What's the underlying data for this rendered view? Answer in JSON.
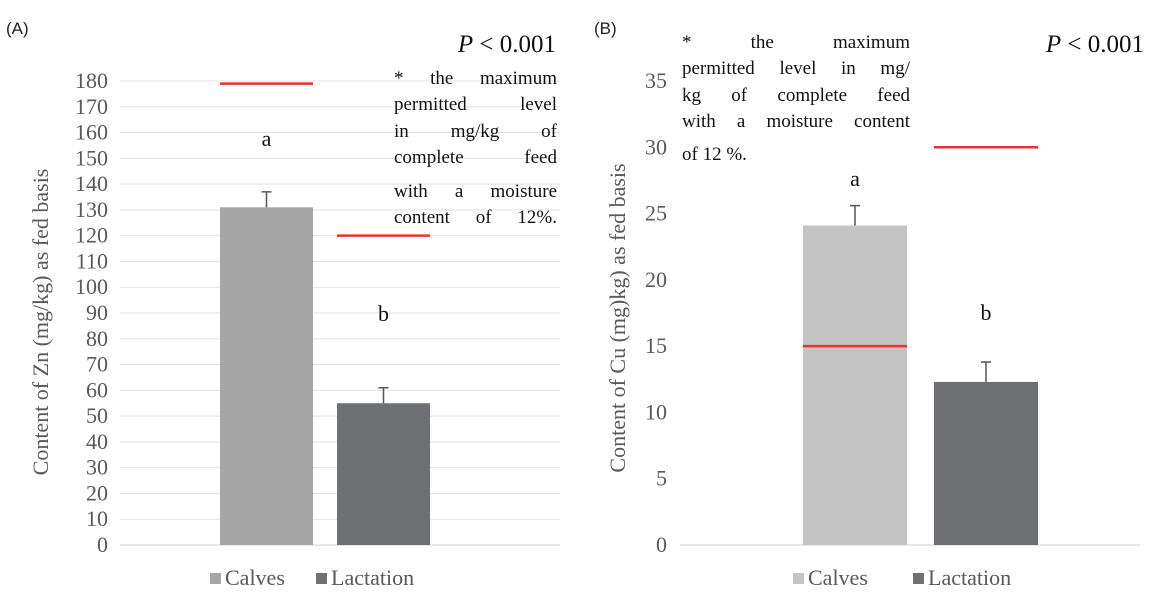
{
  "chart_data": [
    {
      "type": "bar",
      "panel_label": "(A)",
      "p_value_prefix": "P",
      "p_value_rest": " < 0.001",
      "ylabel": "Content of Zn (mg/kg) as fed basis",
      "ylim": [
        0,
        180
      ],
      "y_ticks": [
        0,
        10,
        20,
        30,
        40,
        50,
        60,
        70,
        80,
        90,
        100,
        110,
        120,
        130,
        140,
        150,
        160,
        170,
        180
      ],
      "grid": true,
      "legend_position": "bottom",
      "categories": [
        "Calves",
        "Lactation"
      ],
      "values": [
        131,
        55
      ],
      "errors": [
        6,
        6
      ],
      "colors": [
        "#a6a6a6",
        "#6e6f73"
      ],
      "significance_letters": [
        "a",
        "b"
      ],
      "max_permitted_levels": [
        179,
        120
      ],
      "limit_color": "#e8322a",
      "note_lines": [
        "* the maximum",
        "permitted level",
        "in mg/kg of",
        "complete feed",
        "with a moisture",
        "content of 12%."
      ]
    },
    {
      "type": "bar",
      "panel_label": "(B)",
      "p_value_prefix": "P",
      "p_value_rest": " < 0.001",
      "ylabel": "Content of Cu (mg)kg) as fed basis",
      "ylim": [
        0,
        35
      ],
      "y_ticks": [
        0,
        5,
        10,
        15,
        20,
        25,
        30,
        35
      ],
      "grid": false,
      "legend_position": "bottom",
      "categories": [
        "Calves",
        "Lactation"
      ],
      "values": [
        24.1,
        12.3
      ],
      "errors": [
        1.5,
        1.5
      ],
      "colors": [
        "#c4c4c4",
        "#6e6f73"
      ],
      "significance_letters": [
        "a",
        "b"
      ],
      "max_permitted_levels": [
        15,
        30
      ],
      "limit_color": "#e8322a",
      "note_lines": [
        "* the maximum",
        "permitted level in mg/",
        "kg of complete feed",
        "with a moisture content",
        "of 12 %."
      ]
    }
  ]
}
